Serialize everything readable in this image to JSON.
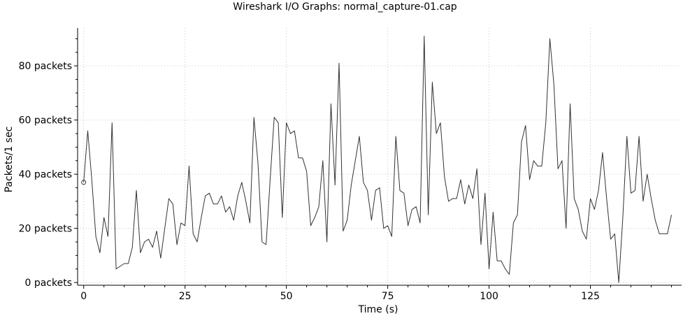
{
  "chart_data": {
    "type": "line",
    "title": "Wireshark I/O Graphs: normal_capture-01.cap",
    "xlabel": "Time (s)",
    "ylabel": "Packets/1 sec",
    "xlim": [
      -1.5,
      147.5
    ],
    "ylim": [
      -1,
      94
    ],
    "x_ticks": [
      0,
      25,
      50,
      75,
      100,
      125
    ],
    "x_tick_labels": [
      "0",
      "25",
      "50",
      "75",
      "100",
      "125"
    ],
    "y_ticks": [
      0,
      20,
      40,
      60,
      80
    ],
    "y_tick_labels": [
      "0 packets",
      "20 packets",
      "40 packets",
      "60 packets",
      "80 packets"
    ],
    "grid": true,
    "series": [
      {
        "values": [
          37,
          56,
          38,
          17,
          11,
          24,
          17,
          59,
          5,
          6,
          7,
          7,
          13,
          34,
          11,
          15,
          16,
          13,
          19,
          9,
          20,
          31,
          29,
          14,
          22,
          21,
          43,
          18,
          15,
          24,
          32,
          33,
          29,
          29,
          32,
          26,
          28,
          23,
          32,
          37,
          30,
          22,
          61,
          44,
          15,
          14,
          38,
          61,
          59,
          24,
          59,
          55,
          56,
          46,
          46,
          41,
          21,
          24,
          28,
          45,
          15,
          66,
          36,
          81,
          19,
          23,
          36,
          45,
          54,
          37,
          34,
          23,
          34,
          35,
          20,
          21,
          17,
          54,
          34,
          33,
          21,
          27,
          28,
          22,
          91,
          25,
          74,
          55,
          59,
          39,
          30,
          31,
          31,
          38,
          29,
          36,
          31,
          42,
          14,
          33,
          5,
          26,
          8,
          8,
          5,
          3,
          22,
          25,
          52,
          58,
          38,
          45,
          43,
          43,
          59,
          90,
          73,
          42,
          45,
          20,
          66,
          31,
          27,
          19,
          16,
          31,
          27,
          34,
          48,
          31,
          16,
          18,
          0,
          24,
          54,
          33,
          34,
          54,
          30,
          40,
          31,
          23,
          18,
          18,
          18,
          25
        ],
        "color": "#333333",
        "marker_first_point": true
      }
    ]
  }
}
